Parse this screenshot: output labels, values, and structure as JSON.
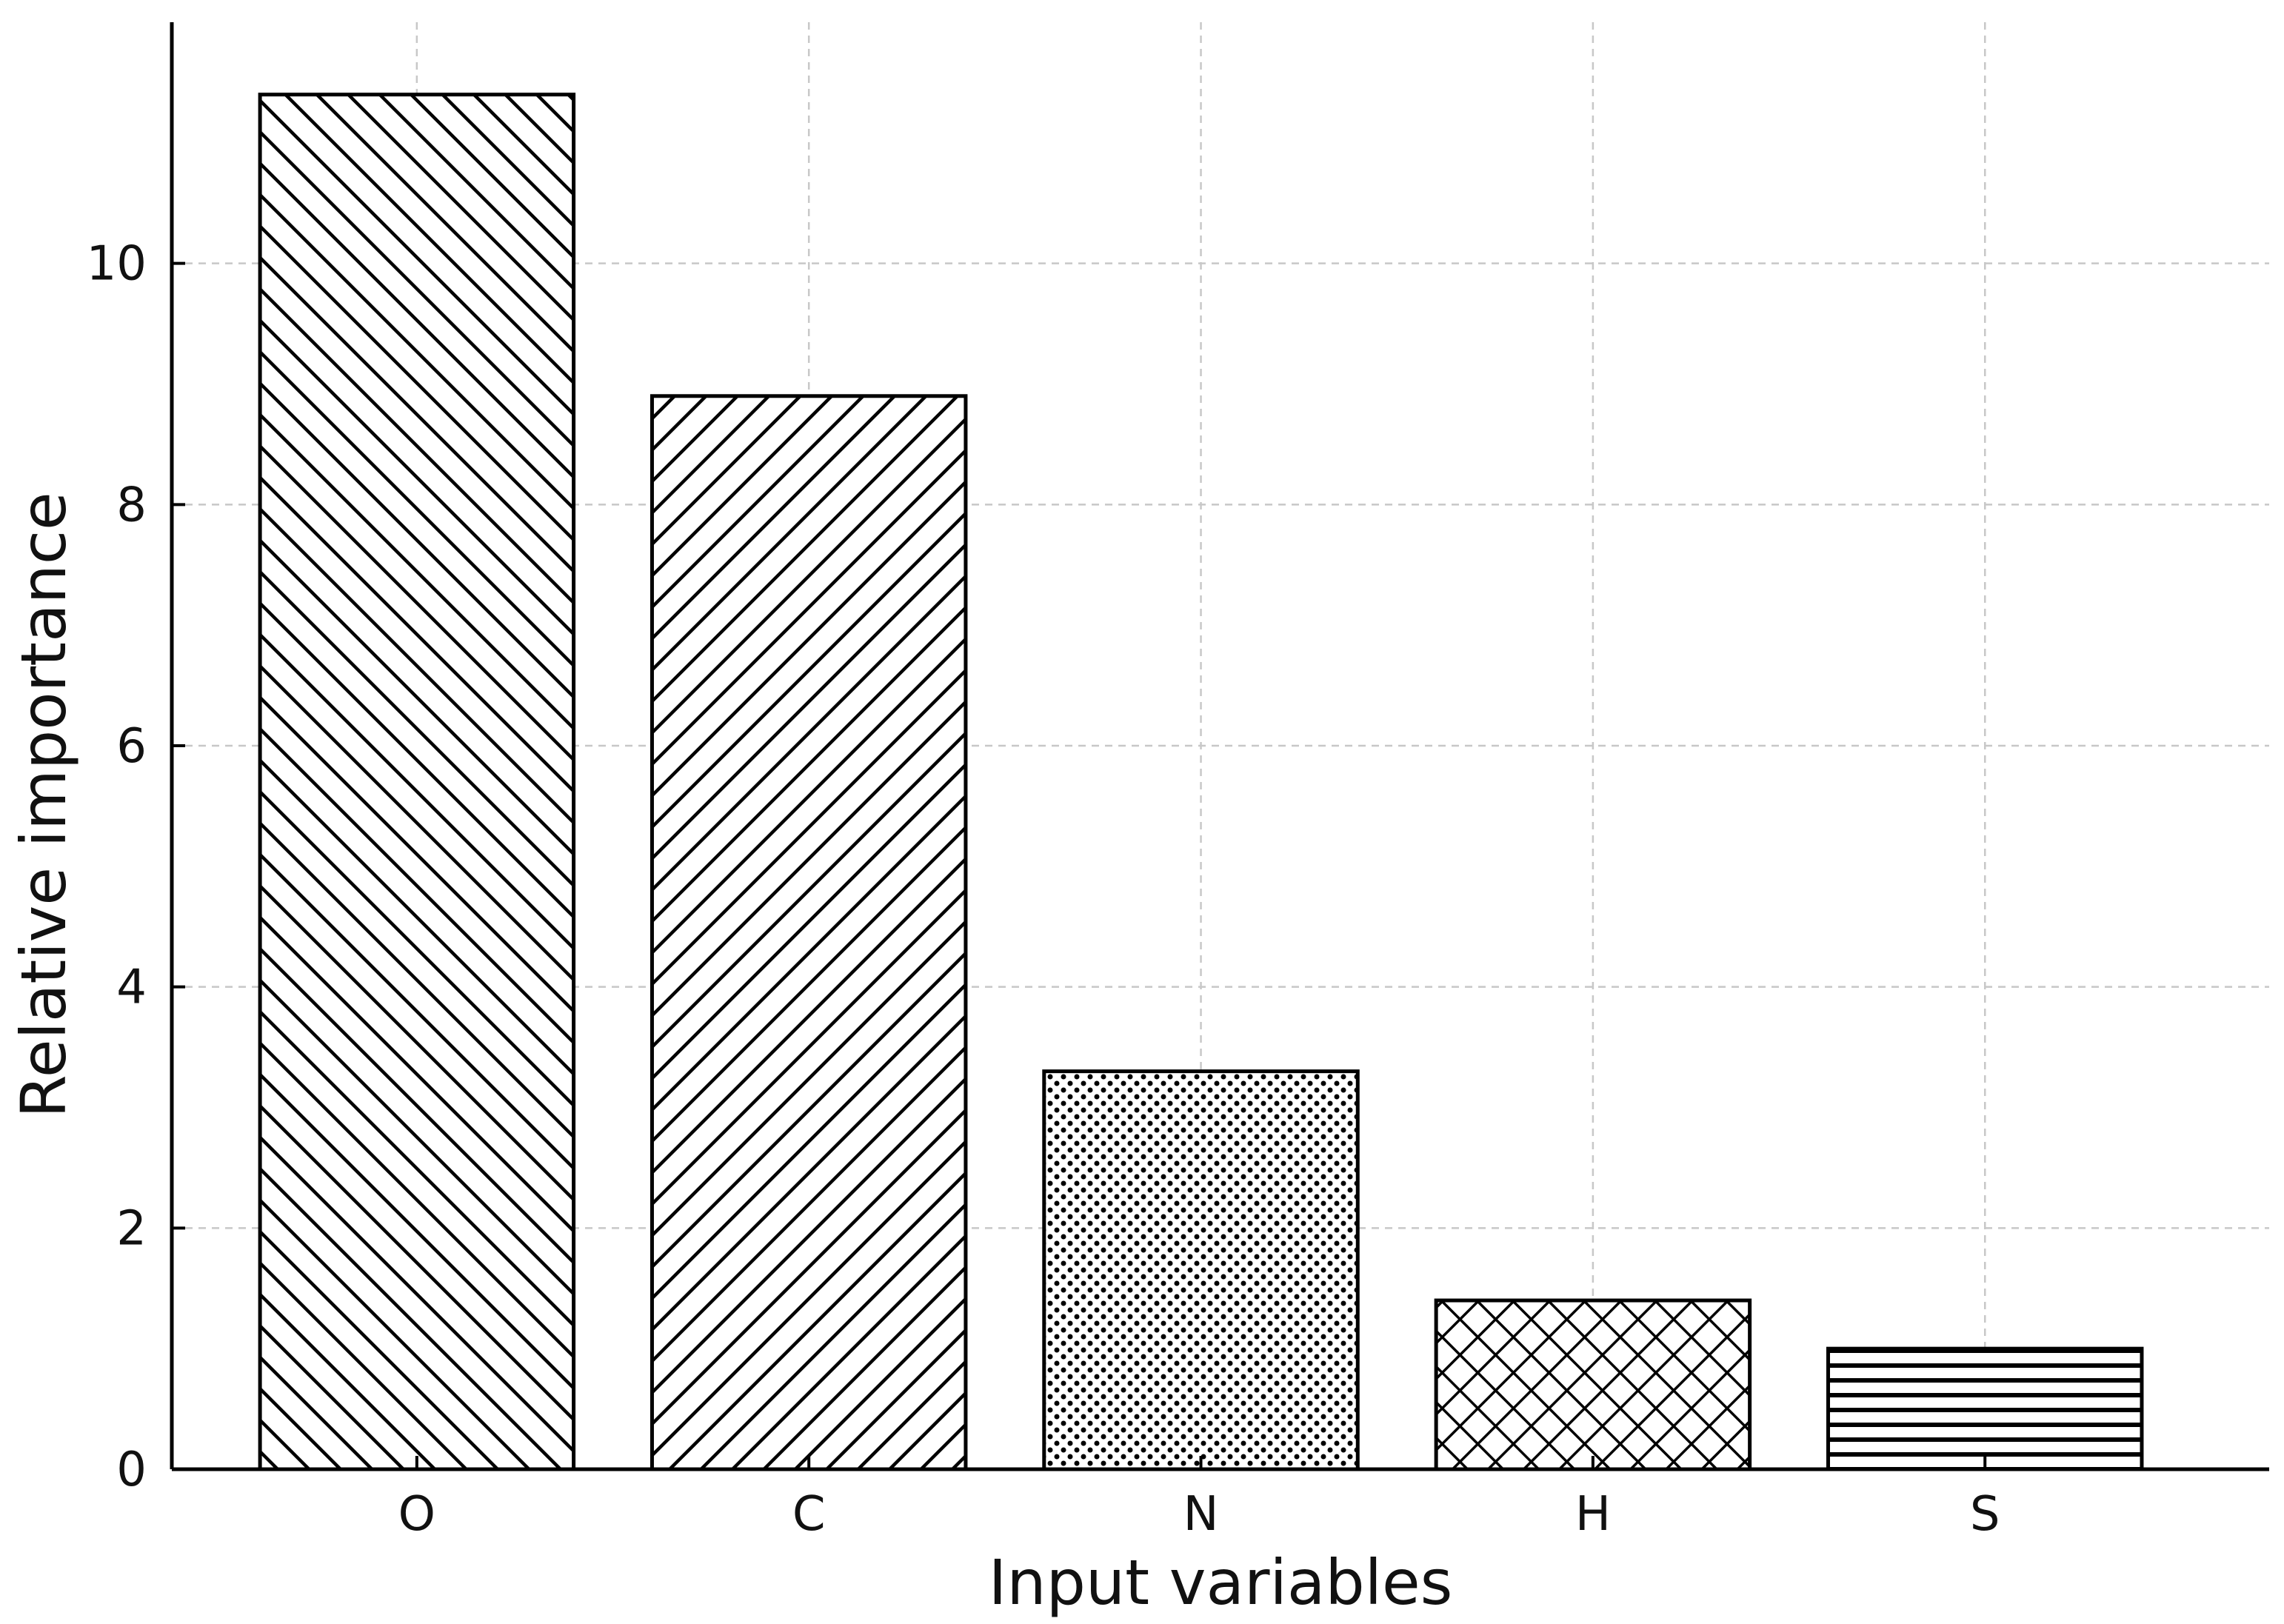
{
  "chart_data": {
    "type": "bar",
    "categories": [
      "O",
      "C",
      "N",
      "H",
      "S"
    ],
    "values": [
      11.4,
      8.9,
      3.3,
      1.4,
      1.0
    ],
    "patterns": [
      "diag-right",
      "diag-left",
      "dots",
      "crosshatch",
      "horizontal"
    ],
    "xlabel": "Input variables",
    "ylabel": "Relative importance",
    "ylim": [
      0,
      12
    ],
    "yticks": [
      0,
      2,
      4,
      6,
      8,
      10
    ],
    "grid": true,
    "bar_color": "#ffffff",
    "edge_color": "#000000",
    "grid_color": "#c8c8c8"
  }
}
